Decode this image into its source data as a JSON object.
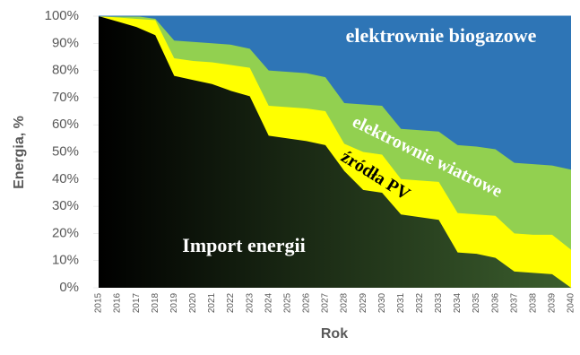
{
  "chart_data": {
    "type": "stacked_area",
    "x_label": "Rok",
    "y_label": "Energia, %",
    "categories": [
      "2015",
      "2016",
      "2017",
      "2018",
      "2019",
      "2020",
      "2021",
      "2022",
      "2023",
      "2024",
      "2025",
      "2026",
      "2027",
      "2028",
      "2029",
      "2030",
      "2031",
      "2032",
      "2033",
      "2034",
      "2035",
      "2036",
      "2037",
      "2038",
      "2039",
      "2040"
    ],
    "series": [
      {
        "name": "Import energii",
        "color": "#000000",
        "values": [
          100,
          98,
          96,
          93,
          78,
          76.5,
          75,
          72.5,
          70.5,
          56,
          55,
          54,
          52.5,
          43,
          36,
          35,
          27,
          26,
          25,
          13,
          12.5,
          11,
          6,
          5.5,
          5,
          0
        ]
      },
      {
        "name": "źródła PV",
        "color": "#ffff00",
        "values": [
          0,
          1.5,
          3,
          5.5,
          6.5,
          7,
          8,
          9.5,
          10.5,
          11,
          11.5,
          12,
          12.5,
          10,
          14,
          14,
          13,
          13.5,
          14,
          14.5,
          14.5,
          15.5,
          14,
          14,
          14.5,
          14
        ]
      },
      {
        "name": "elektrownie wiatrowe",
        "color": "#92d050",
        "values": [
          0,
          0.5,
          1,
          0.5,
          6.5,
          7,
          7,
          7.5,
          7,
          13,
          13,
          13,
          12.5,
          15,
          17.5,
          18,
          18.5,
          18.5,
          18.5,
          25,
          25,
          24.5,
          26,
          26,
          25.5,
          29.5
        ]
      },
      {
        "name": "elektrownie biogazowe",
        "color": "#2e75b6",
        "values": [
          0,
          0,
          0,
          1,
          9,
          9.5,
          10,
          10.5,
          12,
          20,
          20.5,
          21,
          22.5,
          32,
          32.5,
          33,
          41.5,
          42,
          42.5,
          47.5,
          48,
          49,
          54,
          54.5,
          55,
          56.5
        ]
      }
    ],
    "ylim": [
      0,
      100
    ],
    "yticks": [
      {
        "value": 0,
        "label": "0%"
      },
      {
        "value": 10,
        "label": "10%"
      },
      {
        "value": 20,
        "label": "20%"
      },
      {
        "value": 30,
        "label": "30%"
      },
      {
        "value": 40,
        "label": "40%"
      },
      {
        "value": 50,
        "label": "50%"
      },
      {
        "value": 60,
        "label": "60%"
      },
      {
        "value": 70,
        "label": "70%"
      },
      {
        "value": 80,
        "label": "80%"
      },
      {
        "value": 90,
        "label": "90%"
      },
      {
        "value": 100,
        "label": "100%"
      }
    ],
    "grid": false
  }
}
